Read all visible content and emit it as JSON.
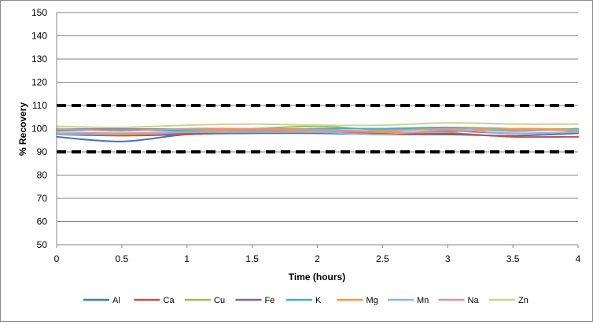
{
  "chart_data": {
    "type": "line",
    "title": "",
    "xlabel": "Time (hours)",
    "ylabel": "% Recovery",
    "xlim": [
      0,
      4
    ],
    "ylim": [
      50,
      150
    ],
    "x_ticks": [
      "0",
      "0.5",
      "1",
      "1.5",
      "2",
      "2.5",
      "3",
      "3.5",
      "4"
    ],
    "y_ticks": [
      "50",
      "60",
      "70",
      "80",
      "90",
      "100",
      "110",
      "120",
      "130",
      "140",
      "150"
    ],
    "x": [
      0,
      0.5,
      1,
      1.5,
      2,
      2.5,
      3,
      3.5,
      4
    ],
    "grid": "horizontal",
    "legend_position": "bottom",
    "reference_lines": [
      {
        "value": 110,
        "style": "dashed",
        "color": "#000000"
      },
      {
        "value": 90,
        "style": "dashed",
        "color": "#000000"
      }
    ],
    "series": [
      {
        "name": "Al",
        "color": "#4472C4",
        "values": [
          96.5,
          94.5,
          97.5,
          98,
          98,
          97.5,
          97.5,
          97,
          98
        ]
      },
      {
        "name": "Ca",
        "color": "#C0504D",
        "values": [
          97.5,
          97,
          97.5,
          98.5,
          98.5,
          97.5,
          98,
          96.5,
          96.5
        ]
      },
      {
        "name": "Cu",
        "color": "#9BBB59",
        "values": [
          99.5,
          99.5,
          99.5,
          100,
          101,
          99.5,
          100.5,
          100,
          99
        ]
      },
      {
        "name": "Fe",
        "color": "#8064A2",
        "values": [
          98,
          98,
          98,
          98.5,
          99,
          98,
          99,
          98,
          98.5
        ]
      },
      {
        "name": "K",
        "color": "#4BACC6",
        "values": [
          99,
          99.5,
          99,
          99,
          100,
          100,
          100.5,
          99,
          100
        ]
      },
      {
        "name": "Mg",
        "color": "#F79646",
        "values": [
          98,
          97.5,
          98.5,
          99.5,
          99,
          98.5,
          98.5,
          100,
          99.5
        ]
      },
      {
        "name": "Mn",
        "color": "#95B3D7",
        "values": [
          97.5,
          98,
          98.5,
          98.5,
          98.5,
          97.5,
          99.5,
          98,
          98.5
        ]
      },
      {
        "name": "Na",
        "color": "#D99795",
        "values": [
          100,
          99,
          100,
          100,
          99.5,
          99,
          100,
          99.5,
          99.5
        ]
      },
      {
        "name": "Zn",
        "color": "#C3D69B",
        "values": [
          101,
          100.5,
          101.5,
          102,
          101.5,
          101.5,
          102.5,
          102,
          102
        ]
      }
    ]
  }
}
